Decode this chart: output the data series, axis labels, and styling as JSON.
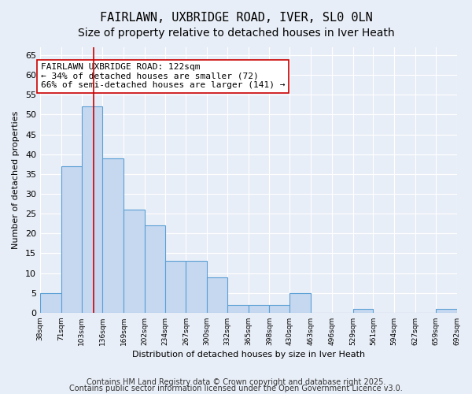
{
  "title_line1": "FAIRLAWN, UXBRIDGE ROAD, IVER, SL0 0LN",
  "title_line2": "Size of property relative to detached houses in Iver Heath",
  "xlabel": "Distribution of detached houses by size in Iver Heath",
  "ylabel": "Number of detached properties",
  "bar_values": [
    5,
    37,
    52,
    39,
    26,
    22,
    13,
    13,
    9,
    2,
    2,
    2,
    5,
    0,
    0,
    1,
    0,
    0,
    0,
    1
  ],
  "bin_edges": [
    38,
    71,
    103,
    136,
    169,
    202,
    234,
    267,
    300,
    332,
    365,
    398,
    430,
    463,
    496,
    529,
    561,
    594,
    627,
    659,
    692
  ],
  "tick_labels": [
    "38sqm",
    "71sqm",
    "103sqm",
    "136sqm",
    "169sqm",
    "202sqm",
    "234sqm",
    "267sqm",
    "300sqm",
    "332sqm",
    "365sqm",
    "398sqm",
    "430sqm",
    "463sqm",
    "496sqm",
    "529sqm",
    "561sqm",
    "594sqm",
    "627sqm",
    "659sqm",
    "692sqm"
  ],
  "bar_color": "#c5d8f0",
  "bar_edge_color": "#5a9fd4",
  "vline_x": 122,
  "vline_color": "#cc0000",
  "ylim": [
    0,
    67
  ],
  "yticks": [
    0,
    5,
    10,
    15,
    20,
    25,
    30,
    35,
    40,
    45,
    50,
    55,
    60,
    65
  ],
  "annotation_text": "FAIRLAWN UXBRIDGE ROAD: 122sqm\n← 34% of detached houses are smaller (72)\n66% of semi-detached houses are larger (141) →",
  "annotation_box_color": "#ffffff",
  "annotation_edge_color": "#cc0000",
  "footer_line1": "Contains HM Land Registry data © Crown copyright and database right 2025.",
  "footer_line2": "Contains public sector information licensed under the Open Government Licence v3.0.",
  "bg_color": "#e8eef7",
  "grid_color": "#ffffff",
  "title_fontsize": 11,
  "subtitle_fontsize": 10,
  "annotation_fontsize": 8,
  "footer_fontsize": 7
}
